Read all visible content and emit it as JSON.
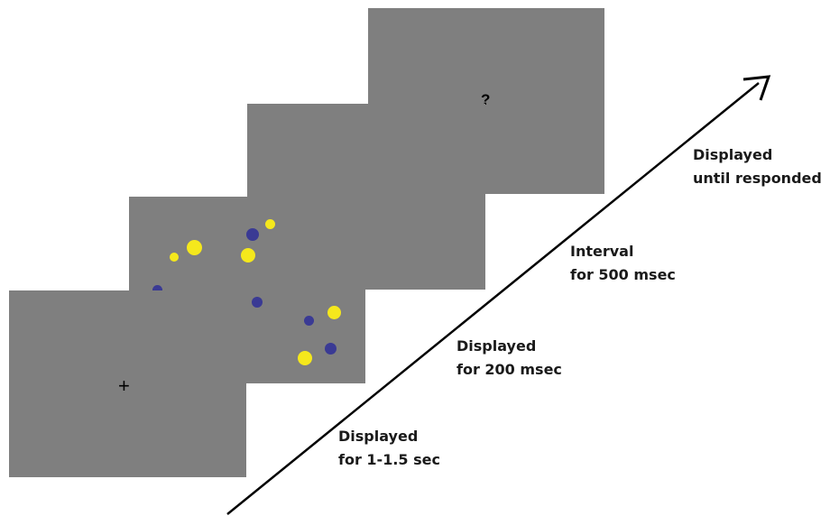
{
  "screens": {
    "response": {
      "symbol": "?"
    },
    "interval": {},
    "stimulus": {
      "dots": [
        {
          "color": "yellow"
        },
        {
          "color": "yellow"
        },
        {
          "color": "yellow"
        },
        {
          "color": "yellow"
        },
        {
          "color": "yellow"
        },
        {
          "color": "yellow"
        },
        {
          "color": "blue"
        },
        {
          "color": "blue"
        },
        {
          "color": "blue"
        },
        {
          "color": "blue"
        },
        {
          "color": "blue"
        }
      ]
    },
    "fixation": {
      "symbol": "+"
    }
  },
  "timing_labels": [
    {
      "line1": "Displayed",
      "line2": "until responded"
    },
    {
      "line1": "Interval",
      "line2": "for 500 msec"
    },
    {
      "line1": "Displayed",
      "line2": "for 200 msec"
    },
    {
      "line1": "Displayed",
      "line2": "for 1-1.5 sec"
    }
  ],
  "colors": {
    "screen_background": "#7f7f7f",
    "yellow_dot": "#f5e81c",
    "blue_dot": "#3a3a94",
    "arrow": "#000000"
  }
}
